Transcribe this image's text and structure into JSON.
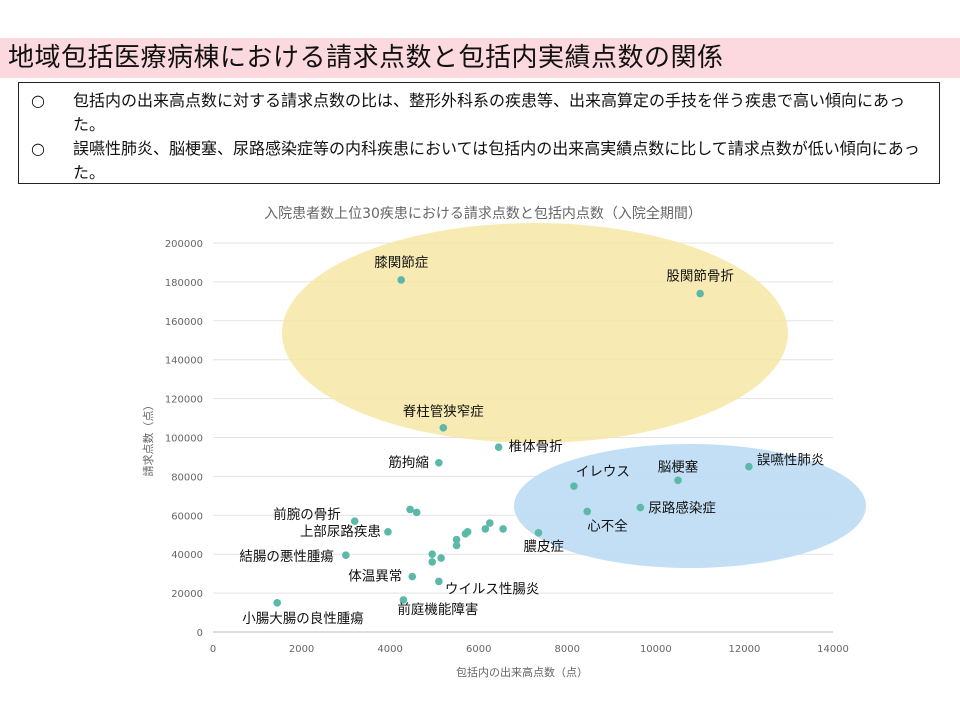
{
  "header": {
    "title": "地域包括医療病棟における請求点数と包括内実績点数の関係"
  },
  "summary": {
    "bullets": [
      {
        "mark": "○",
        "text": "包括内の出来高点数に対する請求点数の比は、整形外科系の疾患等、出来高算定の手技を伴う疾患で高い傾向にあった。"
      },
      {
        "mark": "○",
        "text": "誤嚥性肺炎、脳梗塞、尿路感染症等の内科疾患においては包括内の出来高実績点数に比して請求点数が低い傾向にあった。"
      }
    ]
  },
  "chart_data": {
    "type": "scatter",
    "title": "入院患者数上位30疾患における請求点数と包括内点数（入院全期間）",
    "xlabel": "包括内の出来高点数（点）",
    "ylabel": "請求点数（点）",
    "xlim": [
      0,
      14000
    ],
    "ylim": [
      0,
      200000
    ],
    "xticks": [
      0,
      2000,
      4000,
      6000,
      8000,
      10000,
      12000,
      14000
    ],
    "yticks": [
      0,
      20000,
      40000,
      60000,
      80000,
      100000,
      120000,
      140000,
      160000,
      180000,
      200000
    ],
    "grid": "horizontal",
    "point_color": "#5cb8a8",
    "points": [
      {
        "x": 4250,
        "y": 181000,
        "label": "膝関節症"
      },
      {
        "x": 11000,
        "y": 174000,
        "label": "股関節骨折"
      },
      {
        "x": 5200,
        "y": 105000,
        "label": "脊柱管狭窄症"
      },
      {
        "x": 6450,
        "y": 95000,
        "label": "椎体骨折"
      },
      {
        "x": 5100,
        "y": 87000,
        "label": "筋拘縮"
      },
      {
        "x": 12100,
        "y": 85000,
        "label": "誤嚥性肺炎"
      },
      {
        "x": 10500,
        "y": 78000,
        "label": "脳梗塞"
      },
      {
        "x": 8150,
        "y": 75000,
        "label": "イレウス"
      },
      {
        "x": 9650,
        "y": 64000,
        "label": "尿路感染症"
      },
      {
        "x": 8450,
        "y": 62000,
        "label": "心不全"
      },
      {
        "x": 7350,
        "y": 51000,
        "label": "膿皮症"
      },
      {
        "x": 3200,
        "y": 57000,
        "label": "前腕の骨折"
      },
      {
        "x": 3950,
        "y": 51500,
        "label": "上部尿路疾患"
      },
      {
        "x": 3000,
        "y": 39500,
        "label": "結腸の悪性腫瘍"
      },
      {
        "x": 4500,
        "y": 28500,
        "label": "体温異常"
      },
      {
        "x": 5100,
        "y": 26000,
        "label": "ウイルス性腸炎"
      },
      {
        "x": 4300,
        "y": 16500,
        "label": "前庭機能障害"
      },
      {
        "x": 1450,
        "y": 15000,
        "label": "小腸大腸の良性腫瘍"
      },
      {
        "x": 4450,
        "y": 63000,
        "label": ""
      },
      {
        "x": 4600,
        "y": 61500,
        "label": ""
      },
      {
        "x": 4950,
        "y": 40000,
        "label": ""
      },
      {
        "x": 4950,
        "y": 36000,
        "label": ""
      },
      {
        "x": 5150,
        "y": 38000,
        "label": ""
      },
      {
        "x": 5500,
        "y": 44500,
        "label": ""
      },
      {
        "x": 5500,
        "y": 47500,
        "label": ""
      },
      {
        "x": 5700,
        "y": 50500,
        "label": ""
      },
      {
        "x": 5750,
        "y": 51500,
        "label": ""
      },
      {
        "x": 6150,
        "y": 53000,
        "label": ""
      },
      {
        "x": 6250,
        "y": 56000,
        "label": ""
      },
      {
        "x": 6550,
        "y": 53000,
        "label": ""
      }
    ],
    "groups": [
      {
        "name": "orthopedic",
        "color": "#f6e7a6"
      },
      {
        "name": "internal-medicine",
        "color": "#bcdcf5"
      }
    ]
  }
}
